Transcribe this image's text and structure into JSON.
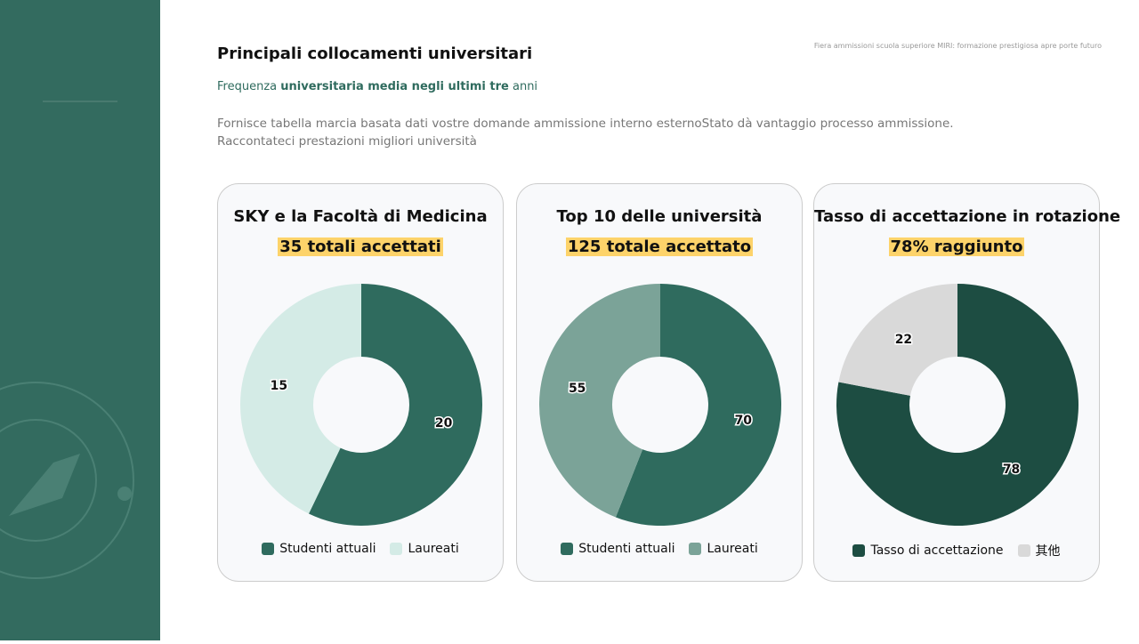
{
  "header": {
    "title": "Principali collocamenti universitari",
    "note": "Fiera ammissioni scuola superiore MIRI: formazione prestigiosa apre porte futuro",
    "subtitle": [
      "Frequenza ",
      "universitaria media negli ultimi tre",
      " anni"
    ],
    "description": [
      "Fornisce tabella marcia basata dati vostre domande ammissione interno esternoStato dà vantaggio processo ammissione.",
      "Raccontateci prestazioni migliori università"
    ]
  },
  "chart_data": [
    {
      "type": "pie",
      "title": "SKY e la Facoltà di Medicina",
      "subtitle": "35 totali accettati",
      "categories": [
        "Studenti attuali",
        "Laureati"
      ],
      "values": [
        20,
        15
      ],
      "colors": [
        "#2f6b5e",
        "#d4ebe6"
      ]
    },
    {
      "type": "pie",
      "title": "Top 10 delle università",
      "subtitle": "125 totale accettato",
      "categories": [
        "Studenti attuali",
        "Laureati"
      ],
      "values": [
        70,
        55
      ],
      "colors": [
        "#2f6b5e",
        "#7ba398"
      ]
    },
    {
      "type": "pie",
      "title": "Tasso di accettazione in rotazione",
      "subtitle": "78% raggiunto",
      "categories": [
        "Tasso di accettazione",
        "其他"
      ],
      "values": [
        78,
        22
      ],
      "colors": [
        "#1d4d42",
        "#d9d9d9"
      ]
    }
  ]
}
